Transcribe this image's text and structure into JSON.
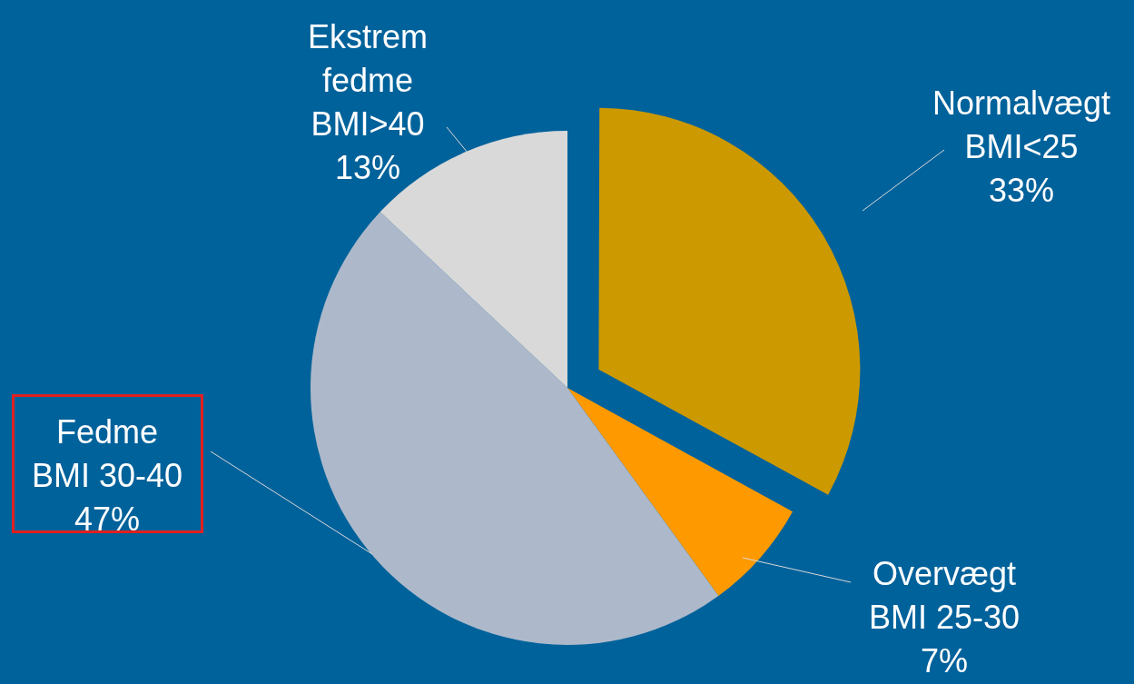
{
  "chart_data": {
    "type": "pie",
    "categories": [
      "Normalvægt\nBMI<25",
      "Overvægt\nBMI 25-30",
      "Fedme\nBMI 30-40",
      "Ekstrem\nfedme\nBMI>40"
    ],
    "values": [
      33,
      7,
      47,
      13
    ],
    "colors": [
      "#cc9900",
      "#ff9900",
      "#adb9ca",
      "#d9d9d9"
    ],
    "value_labels": [
      "33%",
      "7%",
      "47%",
      "13%"
    ],
    "legend": false
  }
}
